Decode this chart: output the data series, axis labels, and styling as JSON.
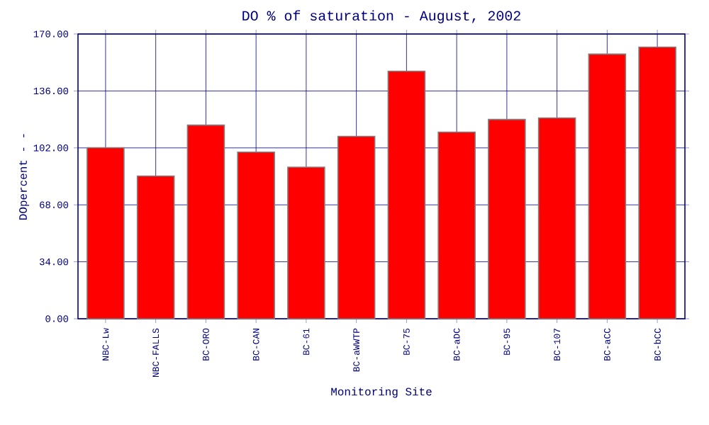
{
  "chart_data": {
    "type": "bar",
    "title": "DO % of saturation - August, 2002",
    "xlabel": "Monitoring Site",
    "ylabel": "DOpercent - -",
    "categories": [
      "NBC-Lw",
      "NBC-FALLS",
      "BC-ORO",
      "BC-CAN",
      "BC-61",
      "BC-aWWTP",
      "BC-75",
      "BC-aDC",
      "BC-95",
      "BC-107",
      "BC-aCC",
      "BC-bCC"
    ],
    "values": [
      102.1,
      85.2,
      115.6,
      99.5,
      90.5,
      108.9,
      147.8,
      111.4,
      119.0,
      119.9,
      158.0,
      162.2
    ],
    "color": "#ff0000",
    "ylim": [
      0,
      170
    ],
    "yticks": [
      {
        "value": 0,
        "label": "0.00"
      },
      {
        "value": 34,
        "label": "34.00"
      },
      {
        "value": 68,
        "label": "68.00"
      },
      {
        "value": 102,
        "label": "102.00"
      },
      {
        "value": 136,
        "label": "136.00"
      },
      {
        "value": 170,
        "label": "170.00"
      }
    ],
    "grid": true
  }
}
